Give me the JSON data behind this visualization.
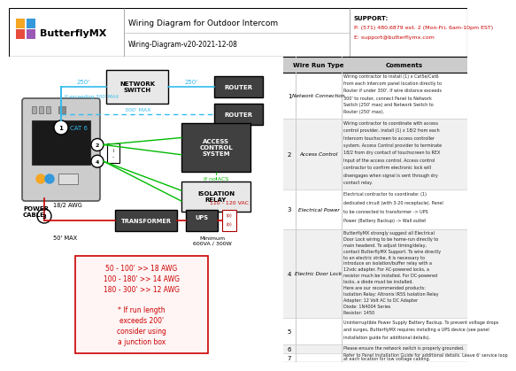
{
  "title": "Wiring Diagram for Outdoor Intercom",
  "subtitle": "Wiring-Diagram-v20-2021-12-08",
  "support_line1": "SUPPORT:",
  "support_line2": "P: (571) 480.6879 ext. 2 (Mon-Fri, 6am-10pm EST)",
  "support_line3": "E: support@butterflymx.com",
  "bg_color": "#ffffff",
  "wire_blue": "#33bbee",
  "wire_green": "#00bb00",
  "wire_red": "#cc0000",
  "logo_colors": [
    "#f5a623",
    "#3498db",
    "#e74c3c",
    "#9b59b6"
  ],
  "rows": [
    {
      "num": "1",
      "type": "Network Connection",
      "comment": "Wiring contractor to install (1) x Cat5e/Cat6\nfrom each Intercom panel location directly to\nRouter if under 300'. If wire distance exceeds\n300' to router, connect Panel to Network\nSwitch (250' max) and Network Switch to\nRouter (250' max)."
    },
    {
      "num": "2",
      "type": "Access Control",
      "comment": "Wiring contractor to coordinate with access\ncontrol provider, install (1) x 18/2 from each\nIntercom touchscreen to access controller\nsystem. Access Control provider to terminate\n18/2 from dry contact of touchscreen to REX\nInput of the access control. Access control\ncontractor to confirm electronic lock will\ndisengages when signal is sent through dry\ncontact relay."
    },
    {
      "num": "3",
      "type": "Electrical Power",
      "comment": "Electrical contractor to coordinate: (1)\ndedicated circuit (with 3-20 receptacle). Panel\nto be connected to transformer -> UPS\nPower (Battery Backup) -> Wall outlet"
    },
    {
      "num": "4",
      "type": "Electric Door Lock",
      "comment": "ButterflyMX strongly suggest all Electrical\nDoor Lock wiring to be home-run directly to\nmain headend. To adjust timing/delay,\ncontact ButterflyMX Support. To wire directly\nto an electric strike, it is necessary to\nintroduce an isolation/buffer relay with a\n12vdc adapter. For AC-powered locks, a\nresistor much be installed. For DC-powered\nlocks, a diode must be installed.\nHere are our recommended products:\nIsolation Relay: Altronix IR5S Isolation Relay\nAdapter: 12 Volt AC to DC Adapter\nDiode: 1N4004 Series\nResistor: 1450"
    },
    {
      "num": "5",
      "type": "",
      "comment": "Uninterruptible Power Supply Battery Backup. To prevent voltage drops\nand surges, ButterflyMX requires installing a UPS device (see panel\ninstallation guide for additional details)."
    },
    {
      "num": "6",
      "type": "",
      "comment": "Please ensure the network switch is properly grounded."
    },
    {
      "num": "7",
      "type": "",
      "comment": "Refer to Panel Installation Guide for additional details. Leave 6' service loop\nat each location for low voltage cabling."
    }
  ]
}
